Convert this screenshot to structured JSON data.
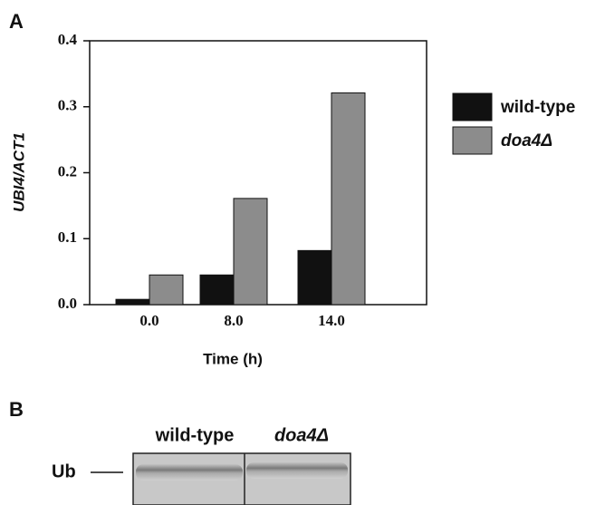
{
  "chart_data": {
    "type": "bar",
    "panel_label": "A",
    "categories": [
      "0.0",
      "8.0",
      "14.0"
    ],
    "series": [
      {
        "name": "wild-type",
        "color": "#111111",
        "values": [
          0.008,
          0.045,
          0.082
        ]
      },
      {
        "name": "doa4Δ",
        "color": "#8c8c8c",
        "values": [
          0.045,
          0.161,
          0.321
        ]
      }
    ],
    "xlabel": "Time (h)",
    "ylabel": "UBI4/ACT1",
    "ylim": [
      0,
      0.4
    ],
    "yticks": [
      {
        "value": 0,
        "label": "0.0"
      },
      0.1,
      0.2,
      0.3,
      0.4
    ],
    "legend": "right"
  },
  "panel_b": {
    "label": "B",
    "lanes": [
      "wild-type",
      "doa4Δ"
    ],
    "band_label": "Ub"
  }
}
